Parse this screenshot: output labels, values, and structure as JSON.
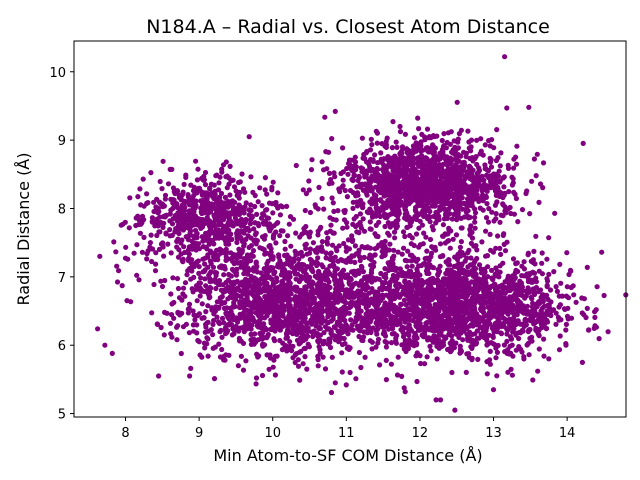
{
  "chart_data": {
    "type": "scatter",
    "title": "N184.A – Radial vs. Closest Atom Distance",
    "xlabel": "Min Atom-to-SF COM Distance (Å)",
    "ylabel": "Radial Distance (Å)",
    "xlim": [
      7.3,
      14.8
    ],
    "ylim": [
      4.95,
      10.45
    ],
    "xticks": [
      "8",
      "9",
      "10",
      "11",
      "12",
      "13",
      "14"
    ],
    "yticks": [
      "5",
      "6",
      "7",
      "8",
      "9",
      "10"
    ],
    "grid": false,
    "legend": "none",
    "point_color": "#800080",
    "clusters": [
      {
        "cx": 9.1,
        "cy": 7.85,
        "sx": 0.45,
        "sy": 0.32,
        "n": 650
      },
      {
        "cx": 12.1,
        "cy": 8.35,
        "sx": 0.55,
        "sy": 0.32,
        "n": 1500
      },
      {
        "cx": 10.2,
        "cy": 6.6,
        "sx": 0.75,
        "sy": 0.4,
        "n": 1400
      },
      {
        "cx": 12.6,
        "cy": 6.6,
        "sx": 0.75,
        "sy": 0.38,
        "n": 1800
      },
      {
        "cx": 10.5,
        "cy": 7.3,
        "sx": 1.0,
        "sy": 0.5,
        "n": 350
      }
    ],
    "outliers": [
      [
        13.15,
        10.22
      ],
      [
        10.85,
        9.42
      ],
      [
        13.48,
        9.48
      ],
      [
        13.18,
        9.47
      ],
      [
        9.68,
        9.05
      ],
      [
        14.47,
        7.36
      ],
      [
        7.65,
        7.3
      ],
      [
        7.62,
        6.24
      ],
      [
        7.72,
        6.0
      ],
      [
        7.82,
        5.88
      ],
      [
        8.45,
        5.55
      ],
      [
        8.87,
        5.55
      ],
      [
        9.78,
        5.52
      ],
      [
        12.22,
        5.2
      ],
      [
        12.28,
        5.2
      ],
      [
        11.8,
        5.32
      ],
      [
        11.0,
        5.42
      ],
      [
        10.85,
        5.45
      ],
      [
        13.6,
        5.62
      ],
      [
        13.0,
        5.35
      ]
    ]
  }
}
